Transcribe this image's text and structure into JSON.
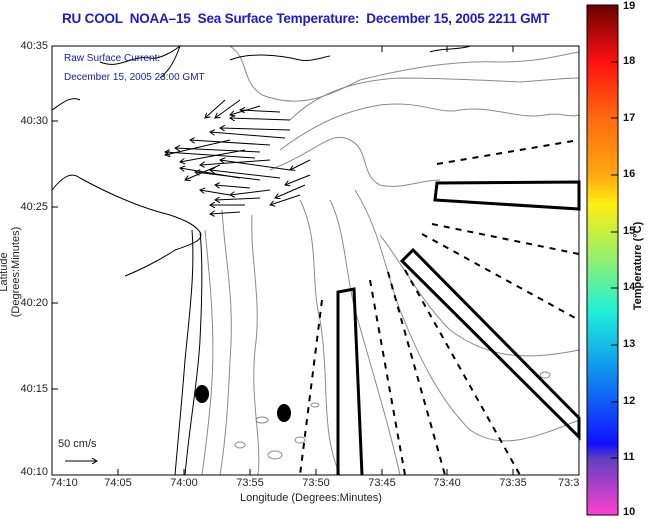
{
  "title": "RU COOL  NOAA–15  Sea Surface Temperature:  December 15, 2005 2211 GMT",
  "annotation": {
    "line1": "Raw Surface Current:",
    "line2": "December 15, 2005 23:00 GMT"
  },
  "axes": {
    "xlabel": "Longitude (Degrees:Minutes)",
    "ylabel": "Latitude (Degrees:Minutes)",
    "xticks": [
      "74:10",
      "74:05",
      "74:00",
      "73:55",
      "73:50",
      "73:45",
      "73:40",
      "73:35",
      "73:3"
    ],
    "yticks": [
      "40:35",
      "40:30",
      "40:25",
      "40:20",
      "40:15",
      "40:10"
    ]
  },
  "scale_arrow": {
    "label": "50 cm/s"
  },
  "colorbar": {
    "label": "Temperature (°C)",
    "ticks": [
      "19",
      "18",
      "17",
      "16",
      "15",
      "14",
      "13",
      "12",
      "11",
      "10"
    ],
    "colors": [
      "#7a0000",
      "#ff1010",
      "#ff7a10",
      "#ffe010",
      "#90f070",
      "#20f0e0",
      "#1090f0",
      "#1010ff",
      "#6040c0",
      "#ff40d0"
    ]
  },
  "chart_data": {
    "type": "map",
    "title": "RU COOL  NOAA–15  Sea Surface Temperature:  December 15, 2005 2211 GMT",
    "xlabel": "Longitude (Degrees:Minutes)",
    "ylabel": "Latitude (Degrees:Minutes)",
    "xlim": [
      "74:10",
      "73:30"
    ],
    "ylim": [
      "40:10",
      "40:35"
    ],
    "colorbar_range": [
      10,
      19
    ],
    "colorbar_units": "°C"
  }
}
